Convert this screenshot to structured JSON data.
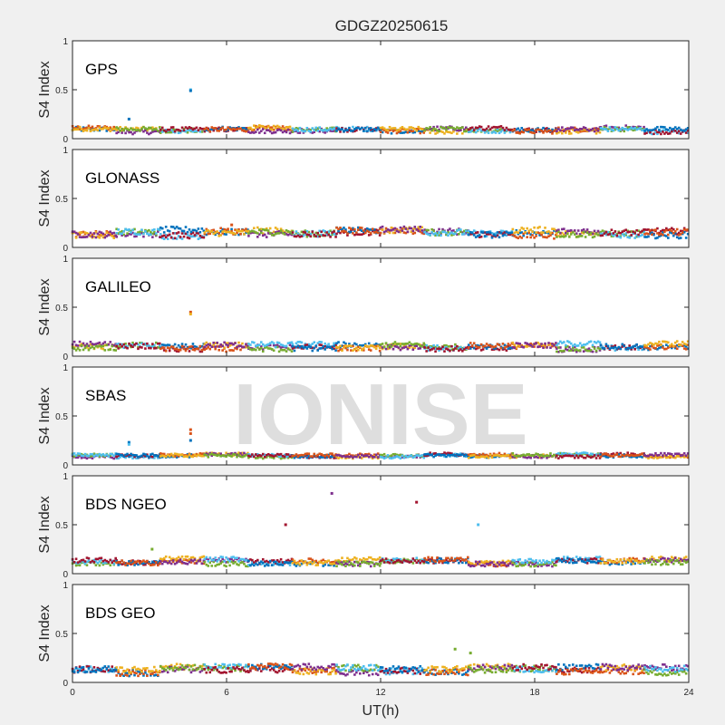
{
  "figure": {
    "title": "GDGZ20250615",
    "xlabel": "UT(h)",
    "watermark": "IONISE"
  },
  "palette": [
    "#0072bd",
    "#d95319",
    "#edb120",
    "#7e2f8e",
    "#77ac30",
    "#4dbeee",
    "#a2142f"
  ],
  "chart_data": [
    {
      "type": "scatter",
      "panel_label": "GPS",
      "ylabel": "S4 Index",
      "xlim": [
        0,
        24
      ],
      "ylim": [
        0,
        1
      ],
      "xticks": [
        0,
        6,
        12,
        18,
        24
      ],
      "yticks": [
        0,
        0.5,
        1
      ],
      "baseline_range": [
        0.04,
        0.14
      ],
      "outliers": [
        {
          "x": 4.6,
          "y": 0.5,
          "color": "#4dbeee"
        },
        {
          "x": 4.6,
          "y": 0.49,
          "color": "#0072bd"
        },
        {
          "x": 2.2,
          "y": 0.2,
          "color": "#0072bd"
        }
      ]
    },
    {
      "type": "scatter",
      "panel_label": "GLONASS",
      "ylabel": "S4 Index",
      "xlim": [
        0,
        24
      ],
      "ylim": [
        0,
        1
      ],
      "xticks": [
        0,
        6,
        12,
        18,
        24
      ],
      "yticks": [
        0,
        0.5,
        1
      ],
      "baseline_range": [
        0.08,
        0.22
      ],
      "outliers": [
        {
          "x": 6.2,
          "y": 0.23,
          "color": "#d95319"
        }
      ]
    },
    {
      "type": "scatter",
      "panel_label": "GALILEO",
      "ylabel": "S4 Index",
      "xlim": [
        0,
        24
      ],
      "ylim": [
        0,
        1
      ],
      "xticks": [
        0,
        6,
        12,
        18,
        24
      ],
      "yticks": [
        0,
        0.5,
        1
      ],
      "baseline_range": [
        0.04,
        0.16
      ],
      "outliers": [
        {
          "x": 4.6,
          "y": 0.45,
          "color": "#d95319"
        },
        {
          "x": 4.6,
          "y": 0.43,
          "color": "#edb120"
        }
      ]
    },
    {
      "type": "scatter",
      "panel_label": "SBAS",
      "ylabel": "S4 Index",
      "xlim": [
        0,
        24
      ],
      "ylim": [
        0,
        1
      ],
      "xticks": [
        0,
        6,
        12,
        18,
        24
      ],
      "yticks": [
        0,
        0.5,
        1
      ],
      "baseline_range": [
        0.06,
        0.13
      ],
      "outliers": [
        {
          "x": 4.6,
          "y": 0.36,
          "color": "#d95319"
        },
        {
          "x": 4.6,
          "y": 0.32,
          "color": "#d95319"
        },
        {
          "x": 4.6,
          "y": 0.25,
          "color": "#0072bd"
        },
        {
          "x": 2.2,
          "y": 0.23,
          "color": "#0072bd"
        },
        {
          "x": 2.2,
          "y": 0.21,
          "color": "#4dbeee"
        }
      ]
    },
    {
      "type": "scatter",
      "panel_label": "BDS NGEO",
      "ylabel": "S4 Index",
      "xlim": [
        0,
        24
      ],
      "ylim": [
        0,
        1
      ],
      "xticks": [
        0,
        6,
        12,
        18,
        24
      ],
      "yticks": [
        0,
        0.5,
        1
      ],
      "baseline_range": [
        0.07,
        0.18
      ],
      "outliers": [
        {
          "x": 10.1,
          "y": 0.82,
          "color": "#7e2f8e"
        },
        {
          "x": 13.4,
          "y": 0.73,
          "color": "#a2142f"
        },
        {
          "x": 8.3,
          "y": 0.5,
          "color": "#a2142f"
        },
        {
          "x": 15.8,
          "y": 0.5,
          "color": "#4dbeee"
        },
        {
          "x": 3.1,
          "y": 0.25,
          "color": "#77ac30"
        }
      ]
    },
    {
      "type": "scatter",
      "panel_label": "BDS GEO",
      "ylabel": "S4 Index",
      "xlim": [
        0,
        24
      ],
      "ylim": [
        0,
        1
      ],
      "xticks": [
        0,
        6,
        12,
        18,
        24
      ],
      "yticks": [
        0,
        0.5,
        1
      ],
      "baseline_range": [
        0.06,
        0.2
      ],
      "outliers": [
        {
          "x": 14.9,
          "y": 0.34,
          "color": "#77ac30"
        },
        {
          "x": 15.5,
          "y": 0.3,
          "color": "#77ac30"
        }
      ]
    }
  ]
}
